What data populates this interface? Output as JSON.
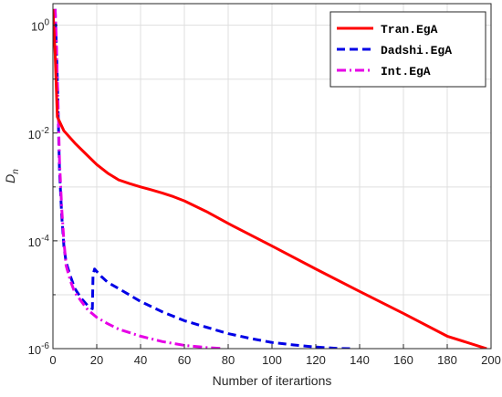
{
  "chart_data": {
    "type": "line",
    "title": "",
    "xlabel": "Number of iterartions",
    "ylabel_main": "D",
    "ylabel_sub": "n",
    "xlim": [
      0,
      200
    ],
    "ylim_exp": [
      -6,
      0.4
    ],
    "y_scale": "log",
    "grid": true,
    "legend_position": "top-right",
    "x_ticks": [
      0,
      20,
      40,
      60,
      80,
      100,
      120,
      140,
      160,
      180,
      200
    ],
    "y_ticks": [
      {
        "base": "10",
        "exp": "0",
        "value_exp": 0
      },
      {
        "base": "10",
        "exp": "-2",
        "value_exp": -2
      },
      {
        "base": "10",
        "exp": "-4",
        "value_exp": -4
      },
      {
        "base": "10",
        "exp": "-6",
        "value_exp": -6
      }
    ],
    "series": [
      {
        "name": "Tran.EgA",
        "color": "#ff0000",
        "dash": "solid",
        "points": [
          [
            0,
            2.0
          ],
          [
            1,
            0.3
          ],
          [
            2,
            0.02
          ],
          [
            5,
            0.011
          ],
          [
            10,
            0.0065
          ],
          [
            15,
            0.0041
          ],
          [
            20,
            0.0026
          ],
          [
            25,
            0.0018
          ],
          [
            30,
            0.00135
          ],
          [
            35,
            0.00115
          ],
          [
            40,
            0.001
          ],
          [
            45,
            0.00088
          ],
          [
            50,
            0.00077
          ],
          [
            55,
            0.00066
          ],
          [
            60,
            0.00055
          ],
          [
            70,
            0.00035
          ],
          [
            80,
            0.00021
          ],
          [
            100,
            8e-05
          ],
          [
            120,
            3e-05
          ],
          [
            140,
            1.15e-05
          ],
          [
            160,
            4.5e-06
          ],
          [
            180,
            1.7e-06
          ],
          [
            198,
            1e-06
          ]
        ]
      },
      {
        "name": "Dadshi.EgA",
        "color": "#0000e6",
        "dash": "dashed",
        "points": [
          [
            1,
            2.0
          ],
          [
            1.5,
            0.5
          ],
          [
            2,
            0.1
          ],
          [
            2.5,
            0.015
          ],
          [
            3,
            0.002
          ],
          [
            4,
            0.0003
          ],
          [
            5,
            8e-05
          ],
          [
            6,
            4e-05
          ],
          [
            8,
            2.2e-05
          ],
          [
            10,
            1.3e-05
          ],
          [
            13,
            8.5e-06
          ],
          [
            16,
            6.2e-06
          ],
          [
            18,
            5.5e-06
          ],
          [
            18.3,
            2.3e-05
          ],
          [
            19,
            3e-05
          ],
          [
            22,
            2.2e-05
          ],
          [
            25,
            1.7e-05
          ],
          [
            30,
            1.3e-05
          ],
          [
            40,
            7.5e-06
          ],
          [
            50,
            4.8e-06
          ],
          [
            60,
            3.3e-06
          ],
          [
            70,
            2.5e-06
          ],
          [
            80,
            1.9e-06
          ],
          [
            90,
            1.55e-06
          ],
          [
            100,
            1.3e-06
          ],
          [
            110,
            1.17e-06
          ],
          [
            120,
            1.07e-06
          ],
          [
            130,
            1.01e-06
          ],
          [
            136,
            1e-06
          ]
        ]
      },
      {
        "name": "Int.EgA",
        "color": "#e600e6",
        "dash": "dashdot",
        "points": [
          [
            1,
            2.0
          ],
          [
            1.5,
            0.6
          ],
          [
            2,
            0.1
          ],
          [
            2.5,
            0.02
          ],
          [
            3,
            0.003
          ],
          [
            4,
            0.0004
          ],
          [
            5,
            0.0001
          ],
          [
            6,
            3.5e-05
          ],
          [
            8,
            1.8e-05
          ],
          [
            10,
            1.1e-05
          ],
          [
            13,
            7.5e-06
          ],
          [
            16,
            5.2e-06
          ],
          [
            20,
            3.8e-06
          ],
          [
            25,
            2.9e-06
          ],
          [
            30,
            2.3e-06
          ],
          [
            40,
            1.7e-06
          ],
          [
            50,
            1.35e-06
          ],
          [
            60,
            1.15e-06
          ],
          [
            70,
            1.05e-06
          ],
          [
            78,
            1e-06
          ]
        ]
      }
    ]
  }
}
